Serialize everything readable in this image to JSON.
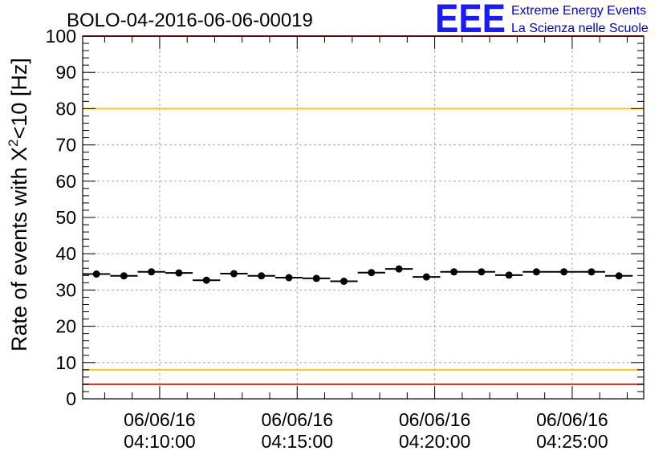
{
  "chart_data": {
    "type": "scatter",
    "title": "BOLO-04-2016-06-06-00019",
    "ylabel": "Rate of events with X²<10 [Hz]",
    "ylabel_parts": {
      "prefix": "Rate of events with X",
      "sup": "2",
      "suffix": "<10 [Hz]"
    },
    "ylim": [
      0,
      100
    ],
    "yticks": [
      "0",
      "10",
      "20",
      "30",
      "40",
      "50",
      "60",
      "70",
      "80",
      "90",
      "100"
    ],
    "xlim_minutes": [
      6.8,
      27.2
    ],
    "xticks": [
      {
        "minute": 9.6,
        "date": "06/06/16",
        "time": "04:10:00"
      },
      {
        "minute": 14.6,
        "date": "06/06/16",
        "time": "04:15:00"
      },
      {
        "minute": 19.6,
        "date": "06/06/16",
        "time": "04:20:00"
      },
      {
        "minute": 24.6,
        "date": "06/06/16",
        "time": "04:25:00"
      }
    ],
    "grid": true,
    "bin_width_minutes": 1.0,
    "series": [
      {
        "x_minutes": [
          7.3,
          8.3,
          9.3,
          10.3,
          11.3,
          12.3,
          13.3,
          14.3,
          15.3,
          16.3,
          17.3,
          18.3,
          19.3,
          20.3,
          21.3,
          22.3,
          23.3,
          24.3,
          25.3,
          26.3
        ],
        "values": [
          34.4,
          33.9,
          35.0,
          34.7,
          32.7,
          34.5,
          33.9,
          33.4,
          33.2,
          32.4,
          34.8,
          35.8,
          33.6,
          35.0,
          35.0,
          34.1,
          35.0,
          35.0,
          35.0,
          33.9
        ]
      }
    ],
    "reference_lines": [
      {
        "value": 80,
        "color": "#f2c81e"
      },
      {
        "value": 8,
        "color": "#f2c81e"
      },
      {
        "value": 100,
        "color": "#e8201a"
      },
      {
        "value": 4,
        "color": "#e8201a"
      }
    ],
    "logo": {
      "text": "EEE",
      "line1": "Extreme Energy Events",
      "line2": "La Scienza nelle Scuole",
      "color": "#1a1aff"
    }
  }
}
